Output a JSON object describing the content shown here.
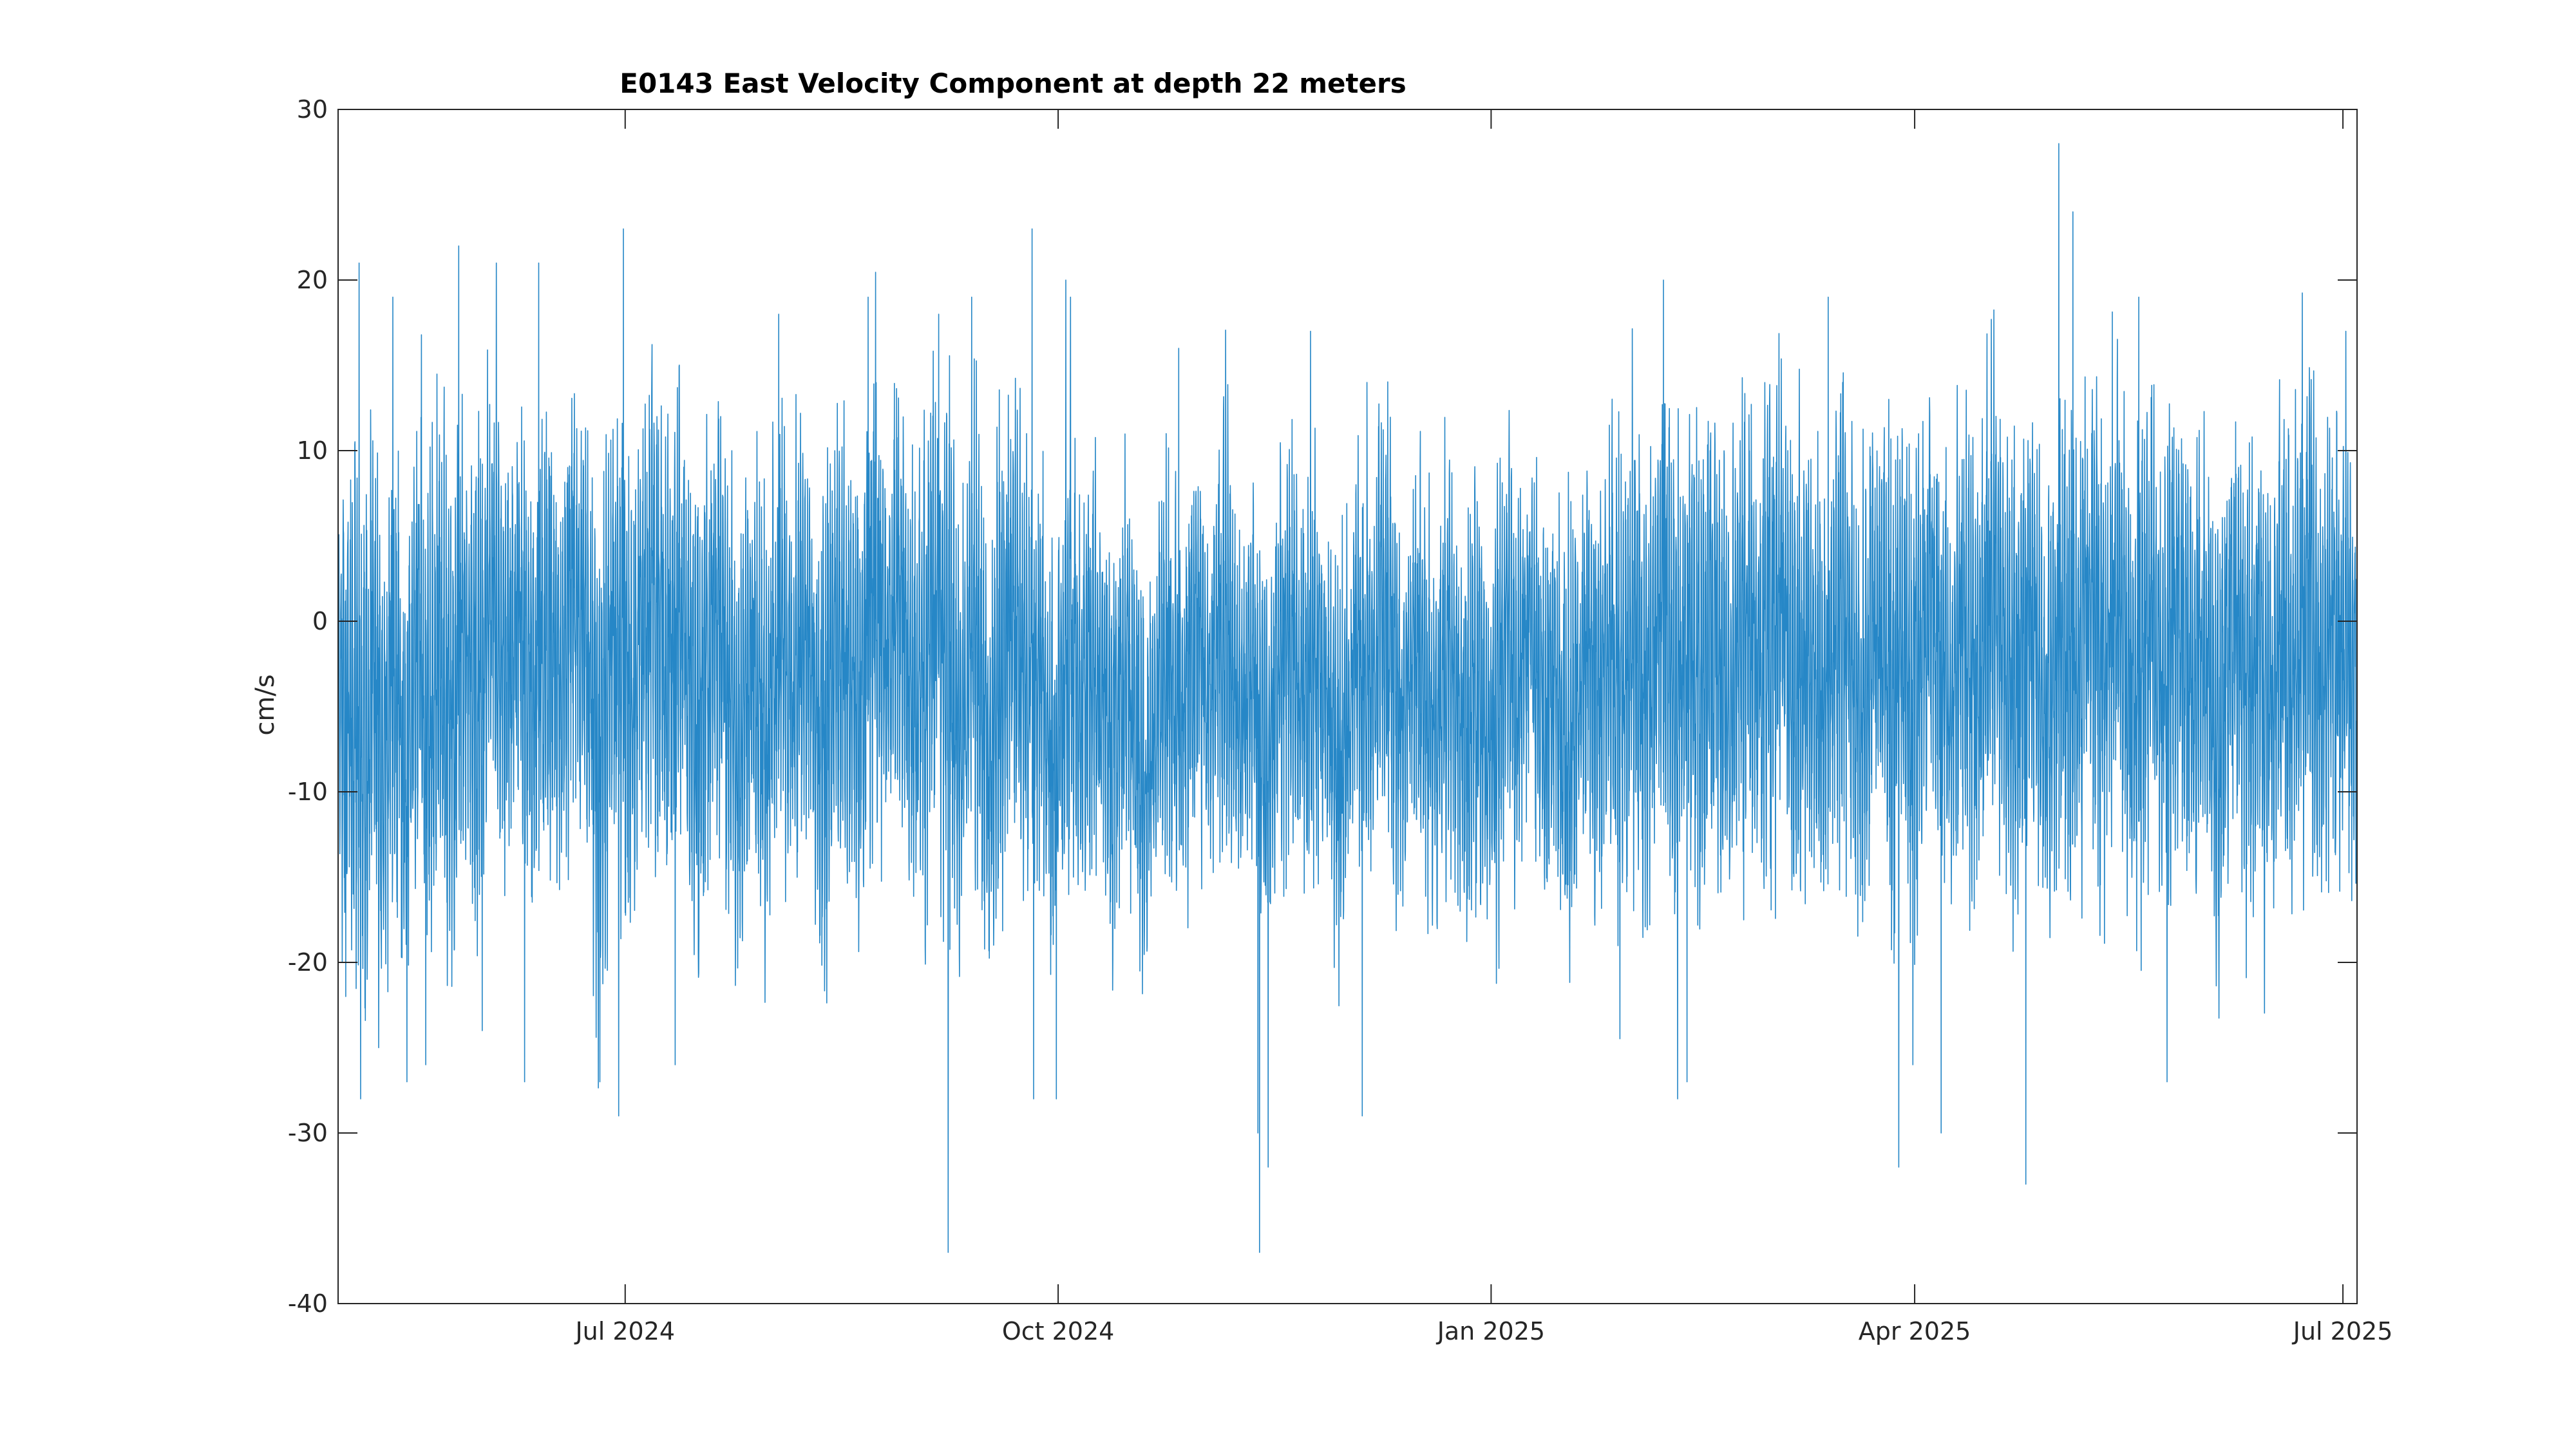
{
  "chart_data": {
    "type": "line",
    "title": "E0143 East Velocity Component at depth 22 meters",
    "xlabel": "",
    "ylabel": "cm/s",
    "xlim": [
      "2024-05-01",
      "2025-07-04"
    ],
    "ylim": [
      -40,
      30
    ],
    "grid": false,
    "legend": "none",
    "line_color": "#0072BD",
    "y_ticks": [
      -40,
      -30,
      -20,
      -10,
      0,
      10,
      20,
      30
    ],
    "y_tick_labels": [
      "-40",
      "-30",
      "-20",
      "-10",
      "0",
      "10",
      "20",
      "30"
    ],
    "x_ticks": [
      "2024-07-01",
      "2024-10-01",
      "2025-01-01",
      "2025-04-01",
      "2025-07-01"
    ],
    "x_tick_labels": [
      "Jul 2024",
      "Oct 2024",
      "Jan 2025",
      "Apr 2025",
      "Jul 2025"
    ],
    "sample_interval_hours": 1,
    "series": [
      {
        "x_start": "2024-05-01",
        "x_end": "2025-07-04",
        "daily_mean": [
          -3,
          -4,
          -5,
          -4,
          -6,
          -8,
          -5,
          -3,
          -6,
          -9,
          -7,
          -4,
          -5,
          -8,
          -10,
          -6,
          -3,
          -2,
          -5,
          -7,
          -4,
          -2,
          -3,
          -5,
          -6,
          -3,
          -1,
          -2,
          -4,
          -6,
          -3,
          0,
          2,
          1,
          -1,
          -3,
          -2,
          0,
          1,
          -1,
          -3,
          -5,
          -3,
          -1,
          0,
          -2,
          -4,
          -3,
          -1,
          1,
          2,
          0,
          -2,
          -4,
          -6,
          -8,
          -5,
          -3,
          -1,
          0,
          -2,
          -4,
          -5,
          -3,
          -1,
          1,
          2,
          0,
          -1,
          -3,
          -2,
          0,
          1,
          0,
          -2,
          -4,
          -6,
          -5,
          -3,
          -1,
          0,
          -2,
          -4,
          -6,
          -8,
          -7,
          -5,
          -3,
          -2,
          -4,
          -6,
          -5,
          -3,
          -2,
          -1,
          -3,
          -5,
          -4,
          -2,
          -1,
          -3,
          -5,
          -7,
          -6,
          -4,
          -2,
          -1,
          0,
          -2,
          -3,
          -5,
          -4,
          -2,
          0,
          1,
          -1,
          -3,
          -2,
          0,
          1,
          -1,
          -3,
          -5,
          -4,
          -2,
          0,
          1,
          2,
          0,
          -2,
          -4,
          -6,
          -7,
          -5,
          -3,
          -2,
          -4,
          -6,
          -8,
          -6,
          -4,
          -2,
          0,
          1,
          -1,
          -3,
          -5,
          -4,
          -3,
          -5,
          -7,
          -9,
          -8,
          -6,
          -4,
          -2,
          -3,
          -5,
          -4,
          -2,
          -1,
          -3,
          -5,
          -7,
          -8,
          -6,
          -4,
          -3,
          -5,
          -7,
          -9,
          -10,
          -8,
          -6,
          -4,
          -3,
          -2,
          -4,
          -6,
          -7,
          -5,
          -3,
          -1,
          -2,
          -4,
          -5,
          -3,
          -1,
          0,
          -2,
          -4,
          -6,
          -5,
          -3,
          -2,
          -4,
          -6,
          -8,
          -7,
          -5,
          -3,
          -2,
          -1,
          -3,
          -5,
          -6,
          -4,
          -2,
          -1,
          -3,
          -5,
          -7,
          -9,
          -8,
          -6,
          -4,
          -2,
          -3,
          -5,
          -4,
          -2,
          0,
          1,
          -1,
          -3,
          -5,
          -6,
          -4,
          -2,
          -1,
          -3,
          -5,
          -7,
          -6,
          -4,
          -2,
          -3,
          -5,
          -7,
          -8,
          -6,
          -4,
          -3,
          -5,
          -7,
          -6,
          -4,
          -2,
          -1,
          -3,
          -5,
          -4,
          -2,
          -1,
          -3,
          -5,
          -6,
          -4,
          -3,
          -5,
          -7,
          -8,
          -6,
          -4,
          -2,
          -1,
          -3,
          -5,
          -4,
          -3,
          -2,
          -4,
          -5,
          -3,
          -1,
          0,
          -2,
          -4,
          -3,
          -1,
          0,
          1,
          -1,
          -3,
          -5,
          -4,
          -2,
          -1,
          -3,
          -4,
          -2,
          -1,
          0,
          -2,
          -4,
          -5,
          -3,
          -1,
          0,
          1,
          -1,
          -3,
          -4,
          -2,
          0,
          1,
          2,
          0,
          -2,
          -4,
          -3,
          -1,
          0,
          -2,
          -4,
          -6,
          -5,
          -3,
          -1,
          0,
          -1,
          -3,
          -5,
          -6,
          -4,
          -2,
          0,
          1,
          -1,
          -3,
          -4,
          -2,
          -1,
          -3,
          -5,
          -4,
          -2,
          0,
          1,
          0,
          -2,
          -4,
          -5,
          -3,
          -1,
          0,
          -2,
          -4,
          -3,
          -1,
          0,
          2,
          1,
          -1,
          -3,
          -5,
          -4,
          -2,
          0,
          1,
          -1,
          -3,
          -5,
          -6,
          -4,
          -2,
          -1,
          -3,
          -5,
          -4,
          -2,
          0,
          1,
          -1,
          -3,
          -2,
          0,
          1,
          2,
          0,
          -2,
          -4,
          -5,
          -3,
          -1,
          0,
          -2,
          -4,
          -3,
          -1,
          0,
          1,
          -1,
          -3,
          -4,
          -2,
          -1,
          -3,
          -5,
          -6,
          -4,
          -2,
          -1,
          0,
          -2,
          -4,
          -5,
          -3,
          -2,
          -4,
          -5,
          -3,
          -1,
          0,
          -2,
          -3,
          -1,
          0,
          1,
          -1,
          -3,
          -4,
          -2,
          -1,
          -2,
          -3
        ],
        "daily_swing": [
          10,
          11,
          12,
          12,
          11,
          13,
          12,
          11,
          12,
          13,
          12,
          11,
          12,
          12,
          11,
          10,
          11,
          12,
          11,
          12,
          11,
          10,
          11,
          12,
          12,
          11,
          12,
          11,
          12,
          13,
          12,
          11,
          10,
          11,
          12,
          11,
          10,
          10,
          11,
          12,
          11,
          10,
          10,
          11,
          12,
          11,
          10,
          11,
          12,
          12,
          11,
          10,
          10,
          11,
          12,
          13,
          12,
          11,
          10,
          10,
          11,
          12,
          12,
          11,
          10,
          11,
          12,
          11,
          10,
          11,
          12,
          11,
          10,
          10,
          11,
          12,
          12,
          11,
          10,
          10,
          11,
          12,
          12,
          11,
          12,
          11,
          10,
          9,
          10,
          11,
          12,
          11,
          10,
          10,
          9,
          10,
          11,
          12,
          11,
          10,
          9,
          10,
          11,
          12,
          11,
          10,
          10,
          11,
          12,
          12,
          11,
          10,
          10,
          11,
          12,
          11,
          10,
          10,
          11,
          12,
          11,
          10,
          11,
          12,
          13,
          12,
          11,
          10,
          11,
          12,
          12,
          11,
          10,
          10,
          11,
          12,
          11,
          10,
          10,
          11,
          12,
          12,
          11,
          10,
          10,
          11,
          11,
          10,
          9,
          10,
          11,
          10,
          9,
          9,
          10,
          11,
          10,
          9,
          9,
          10,
          10,
          9,
          8,
          9,
          10,
          11,
          10,
          9,
          9,
          10,
          10,
          9,
          8,
          8,
          9,
          10,
          10,
          9,
          8,
          8,
          9,
          10,
          10,
          9,
          8,
          8,
          9,
          10,
          11,
          10,
          9,
          8,
          8,
          9,
          10,
          10,
          9,
          8,
          9,
          10,
          11,
          10,
          9,
          8,
          8,
          9,
          10,
          10,
          9,
          8,
          8,
          9,
          10,
          9,
          8,
          8,
          9,
          10,
          10,
          9,
          8,
          9,
          10,
          11,
          10,
          9,
          8,
          8,
          9,
          10,
          10,
          9,
          8,
          9,
          10,
          11,
          10,
          9,
          9,
          10,
          11,
          11,
          10,
          9,
          9,
          10,
          11,
          10,
          9,
          9,
          10,
          10,
          9,
          8,
          9,
          10,
          10,
          9,
          8,
          9,
          10,
          11,
          10,
          9,
          9,
          10,
          11,
          11,
          10,
          9,
          10,
          11,
          12,
          11,
          10,
          10,
          11,
          12,
          11,
          10,
          10,
          11,
          12,
          12,
          11,
          10,
          10,
          11,
          12,
          11,
          10,
          11,
          12,
          12,
          11,
          10,
          11,
          12,
          13,
          12,
          11,
          10,
          11,
          12,
          12,
          11,
          10,
          10,
          11,
          12,
          11,
          10,
          11,
          12,
          12,
          11,
          10,
          10,
          11,
          12,
          12,
          11,
          10,
          11,
          12,
          11,
          10,
          10,
          11,
          12,
          12,
          11,
          10,
          11,
          12,
          12,
          11,
          10,
          10,
          11,
          12,
          11,
          10,
          10,
          11,
          12,
          12,
          11,
          10,
          10,
          11,
          12,
          12,
          11,
          10,
          11,
          12,
          11,
          10,
          10,
          11,
          12,
          12,
          11,
          10,
          10,
          11,
          12,
          12,
          11,
          10,
          10,
          11,
          12,
          11,
          10,
          10,
          11,
          12,
          12,
          11,
          10,
          11,
          12,
          12,
          11,
          10,
          10,
          11,
          12,
          11,
          10,
          11,
          12,
          12,
          11,
          10,
          10,
          11,
          12,
          12,
          11,
          10,
          10,
          11,
          12,
          11
        ],
        "extreme_values": [
          {
            "date": "2024-05-02",
            "value": -22
          },
          {
            "date": "2024-05-05",
            "value": 21
          },
          {
            "date": "2024-05-05",
            "value": -28
          },
          {
            "date": "2024-05-09",
            "value": -25
          },
          {
            "date": "2024-05-12",
            "value": 19
          },
          {
            "date": "2024-05-15",
            "value": -27
          },
          {
            "date": "2024-05-19",
            "value": -26
          },
          {
            "date": "2024-05-26",
            "value": 22
          },
          {
            "date": "2024-05-31",
            "value": -24
          },
          {
            "date": "2024-06-03",
            "value": 21
          },
          {
            "date": "2024-06-09",
            "value": -27
          },
          {
            "date": "2024-06-12",
            "value": 21
          },
          {
            "date": "2024-06-25",
            "value": -27
          },
          {
            "date": "2024-06-29",
            "value": -29
          },
          {
            "date": "2024-06-30",
            "value": 23
          },
          {
            "date": "2024-07-11",
            "value": -26
          },
          {
            "date": "2024-08-02",
            "value": 18
          },
          {
            "date": "2024-08-21",
            "value": 19
          },
          {
            "date": "2024-09-05",
            "value": 18
          },
          {
            "date": "2024-09-07",
            "value": -37
          },
          {
            "date": "2024-09-12",
            "value": 19
          },
          {
            "date": "2024-09-25",
            "value": 23
          },
          {
            "date": "2024-09-25",
            "value": -28
          },
          {
            "date": "2024-09-30",
            "value": -28
          },
          {
            "date": "2024-10-02",
            "value": 20
          },
          {
            "date": "2024-10-03",
            "value": 19
          },
          {
            "date": "2024-10-26",
            "value": 16
          },
          {
            "date": "2024-11-12",
            "value": -30
          },
          {
            "date": "2024-11-12",
            "value": -37
          },
          {
            "date": "2024-11-14",
            "value": -32
          },
          {
            "date": "2024-11-23",
            "value": 17
          },
          {
            "date": "2024-12-04",
            "value": -29
          },
          {
            "date": "2024-12-05",
            "value": 14
          },
          {
            "date": "2025-02-06",
            "value": 20
          },
          {
            "date": "2025-02-09",
            "value": -28
          },
          {
            "date": "2025-02-11",
            "value": -27
          },
          {
            "date": "2025-03-13",
            "value": 19
          },
          {
            "date": "2025-03-28",
            "value": -32
          },
          {
            "date": "2025-03-31",
            "value": -26
          },
          {
            "date": "2025-04-06",
            "value": -30
          },
          {
            "date": "2025-04-24",
            "value": -33
          },
          {
            "date": "2025-05-01",
            "value": 28
          },
          {
            "date": "2025-05-04",
            "value": 24
          },
          {
            "date": "2025-05-18",
            "value": 19
          },
          {
            "date": "2025-05-24",
            "value": -27
          },
          {
            "date": "2025-07-01",
            "value": 17
          }
        ]
      }
    ]
  }
}
